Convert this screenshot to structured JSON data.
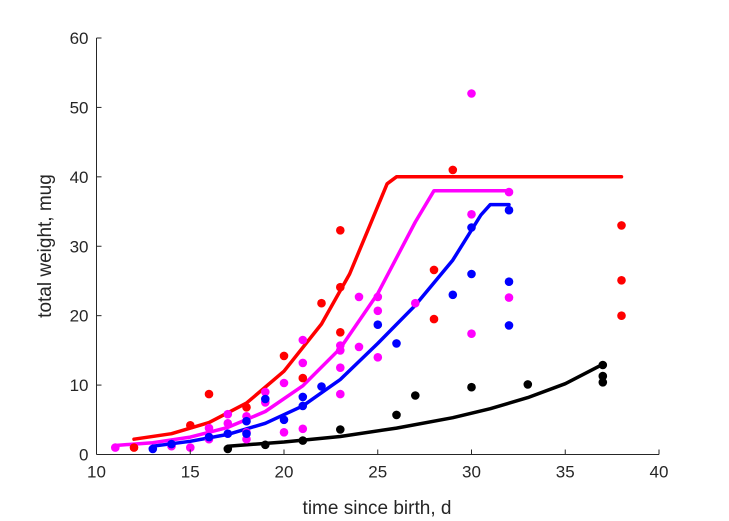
{
  "chart_data": {
    "type": "scatter",
    "title": "",
    "xlabel": "time since birth, d",
    "ylabel": "total weight, mug",
    "xlim": [
      10,
      40
    ],
    "ylim": [
      0,
      60
    ],
    "xticks": [
      10,
      15,
      20,
      25,
      30,
      35,
      40
    ],
    "yticks": [
      0,
      10,
      20,
      30,
      40,
      50,
      60
    ],
    "grid": false,
    "legend": "none",
    "series": [
      {
        "color": "#ff0000",
        "points": [
          [
            12,
            1.0
          ],
          [
            15,
            4.2
          ],
          [
            16,
            8.7
          ],
          [
            18,
            6.8
          ],
          [
            20,
            14.2
          ],
          [
            21,
            11.0
          ],
          [
            22,
            21.8
          ],
          [
            23,
            17.6
          ],
          [
            23,
            24.1
          ],
          [
            23,
            32.3
          ],
          [
            28,
            26.6
          ],
          [
            28,
            19.5
          ],
          [
            29,
            41.0
          ],
          [
            38,
            33.0
          ],
          [
            38,
            25.1
          ],
          [
            38,
            20.0
          ]
        ],
        "curve": [
          [
            12,
            2.2
          ],
          [
            14,
            3.0
          ],
          [
            16,
            4.6
          ],
          [
            18,
            7.4
          ],
          [
            20,
            12.0
          ],
          [
            22,
            18.8
          ],
          [
            23.5,
            26.0
          ],
          [
            24.5,
            32.5
          ],
          [
            25.5,
            39.0
          ],
          [
            26,
            40.0
          ],
          [
            38,
            40.0
          ]
        ]
      },
      {
        "color": "#ff00ff",
        "points": [
          [
            11,
            1.0
          ],
          [
            14,
            1.2
          ],
          [
            15,
            1.0
          ],
          [
            16,
            2.2
          ],
          [
            16,
            3.8
          ],
          [
            17,
            4.5
          ],
          [
            17,
            5.8
          ],
          [
            18,
            2.2
          ],
          [
            18,
            3.2
          ],
          [
            18,
            5.5
          ],
          [
            19,
            7.5
          ],
          [
            19,
            9.0
          ],
          [
            20,
            3.2
          ],
          [
            20,
            10.3
          ],
          [
            21,
            3.7
          ],
          [
            21,
            13.2
          ],
          [
            21,
            16.5
          ],
          [
            23,
            8.7
          ],
          [
            23,
            12.5
          ],
          [
            23,
            15.0
          ],
          [
            23,
            15.7
          ],
          [
            24,
            15.5
          ],
          [
            24,
            22.7
          ],
          [
            25,
            14.0
          ],
          [
            25,
            20.7
          ],
          [
            25,
            22.7
          ],
          [
            27,
            21.8
          ],
          [
            30,
            52.0
          ],
          [
            30,
            34.6
          ],
          [
            30,
            17.4
          ],
          [
            32,
            37.8
          ],
          [
            32,
            22.6
          ]
        ],
        "curve": [
          [
            11,
            1.3
          ],
          [
            13,
            1.7
          ],
          [
            15,
            2.5
          ],
          [
            17,
            3.9
          ],
          [
            19,
            6.2
          ],
          [
            21,
            9.9
          ],
          [
            23,
            15.3
          ],
          [
            25,
            23.2
          ],
          [
            27,
            33.5
          ],
          [
            28,
            38.0
          ],
          [
            32,
            38.0
          ]
        ]
      },
      {
        "color": "#0000ff",
        "points": [
          [
            13,
            0.8
          ],
          [
            14,
            1.5
          ],
          [
            16,
            2.5
          ],
          [
            17,
            3.0
          ],
          [
            18,
            3.0
          ],
          [
            18,
            4.8
          ],
          [
            19,
            8.0
          ],
          [
            20,
            5.0
          ],
          [
            21,
            7.0
          ],
          [
            21,
            8.3
          ],
          [
            22,
            9.8
          ],
          [
            25,
            18.7
          ],
          [
            26,
            16.0
          ],
          [
            29,
            23.0
          ],
          [
            30,
            32.7
          ],
          [
            30,
            26.0
          ],
          [
            32,
            35.2
          ],
          [
            32,
            24.9
          ],
          [
            32,
            18.6
          ]
        ],
        "curve": [
          [
            13,
            1.2
          ],
          [
            15,
            1.9
          ],
          [
            17,
            2.9
          ],
          [
            19,
            4.5
          ],
          [
            21,
            7.0
          ],
          [
            23,
            10.8
          ],
          [
            25,
            16.0
          ],
          [
            27,
            21.5
          ],
          [
            29,
            28.0
          ],
          [
            30.5,
            34.5
          ],
          [
            31,
            36.0
          ],
          [
            32,
            36.0
          ]
        ]
      },
      {
        "color": "#000000",
        "points": [
          [
            17,
            0.8
          ],
          [
            19,
            1.4
          ],
          [
            21,
            2.0
          ],
          [
            23,
            3.6
          ],
          [
            26,
            5.7
          ],
          [
            27,
            8.5
          ],
          [
            30,
            9.7
          ],
          [
            33,
            10.1
          ],
          [
            37,
            12.9
          ],
          [
            37,
            11.3
          ],
          [
            37,
            10.4
          ]
        ],
        "curve": [
          [
            17,
            1.2
          ],
          [
            20,
            1.8
          ],
          [
            23,
            2.6
          ],
          [
            26,
            3.8
          ],
          [
            29,
            5.3
          ],
          [
            31,
            6.6
          ],
          [
            33,
            8.2
          ],
          [
            35,
            10.2
          ],
          [
            37,
            13.0
          ]
        ]
      }
    ]
  }
}
